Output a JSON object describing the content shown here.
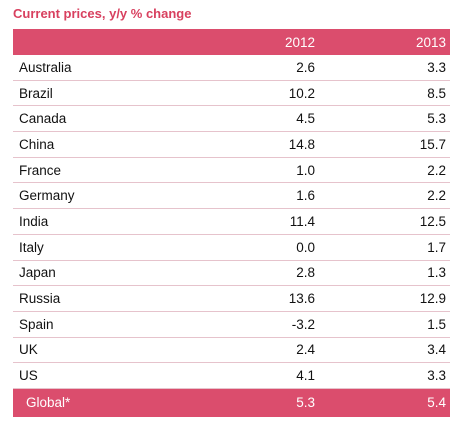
{
  "chart_data": {
    "type": "table",
    "title": "Current prices, y/y % change",
    "columns": [
      "",
      "2012",
      "2013"
    ],
    "rows": [
      {
        "country": "Australia",
        "y2012": "2.6",
        "y2013": "3.3"
      },
      {
        "country": "Brazil",
        "y2012": "10.2",
        "y2013": "8.5"
      },
      {
        "country": "Canada",
        "y2012": "4.5",
        "y2013": "5.3"
      },
      {
        "country": "China",
        "y2012": "14.8",
        "y2013": "15.7"
      },
      {
        "country": "France",
        "y2012": "1.0",
        "y2013": "2.2"
      },
      {
        "country": "Germany",
        "y2012": "1.6",
        "y2013": "2.2"
      },
      {
        "country": "India",
        "y2012": "11.4",
        "y2013": "12.5"
      },
      {
        "country": "Italy",
        "y2012": "0.0",
        "y2013": "1.7"
      },
      {
        "country": "Japan",
        "y2012": "2.8",
        "y2013": "1.3"
      },
      {
        "country": "Russia",
        "y2012": "13.6",
        "y2013": "12.9"
      },
      {
        "country": "Spain",
        "y2012": "-3.2",
        "y2013": "1.5"
      },
      {
        "country": "UK",
        "y2012": "2.4",
        "y2013": "3.4"
      },
      {
        "country": "US",
        "y2012": "4.1",
        "y2013": "3.3"
      }
    ],
    "total": {
      "country": "Global*",
      "y2012": "5.3",
      "y2013": "5.4"
    },
    "colors": {
      "title": "#d8405f",
      "header_background": "#db4d6d",
      "header_text": "#ffffff",
      "row_divider": "#e6c3cc"
    }
  }
}
